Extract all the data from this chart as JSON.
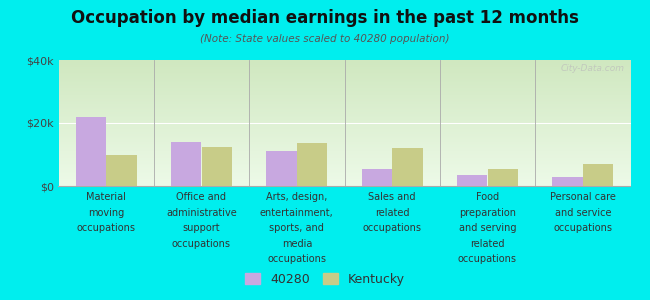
{
  "title": "Occupation by median earnings in the past 12 months",
  "subtitle": "(Note: State values scaled to 40280 population)",
  "categories": [
    "Material\nmoving\noccupations",
    "Office and\nadministrative\nsupport\noccupations",
    "Arts, design,\nentertainment,\nsports, and\nmedia\noccupations",
    "Sales and\nrelated\noccupations",
    "Food\npreparation\nand serving\nrelated\noccupations",
    "Personal care\nand service\noccupations"
  ],
  "values_40280": [
    22000,
    14000,
    11000,
    5500,
    3500,
    3000
  ],
  "values_kentucky": [
    10000,
    12500,
    13500,
    12000,
    5500,
    7000
  ],
  "color_40280": "#c8a8e0",
  "color_kentucky": "#c8cc88",
  "ylim": [
    0,
    40000
  ],
  "ytick_labels": [
    "$0",
    "$20k",
    "$40k"
  ],
  "ytick_values": [
    0,
    20000,
    40000
  ],
  "outer_bg": "#00eeee",
  "plot_bg_top": "#d0e8c0",
  "plot_bg_bottom": "#edfae8",
  "watermark": "City-Data.com",
  "legend_labels": [
    "40280",
    "Kentucky"
  ],
  "bar_width": 0.32
}
